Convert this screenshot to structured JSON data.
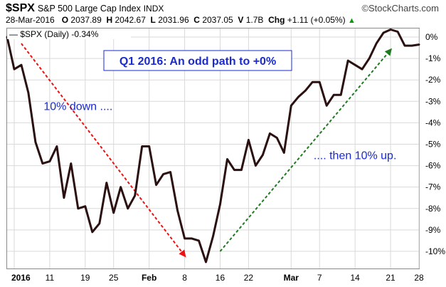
{
  "header": {
    "ticker": "$SPX",
    "index_name": "S&P 500 Large Cap Index",
    "exchange": "INDX",
    "brand": "©StockCharts.com",
    "date": "28-Mar-2016",
    "open_label": "O",
    "open": "2037.89",
    "high_label": "H",
    "high": "2042.67",
    "low_label": "L",
    "low": "2031.96",
    "close_label": "C",
    "close": "2037.05",
    "volume_label": "V",
    "volume": "1.7B",
    "change_label": "Chg",
    "change": "+1.11 (+0.05%)",
    "change_arrow": "▲"
  },
  "colors": {
    "line": "#2a1010",
    "grid": "#d9d9d9",
    "title_text": "#1a2ad0",
    "annotation_text": "#1a2ad0",
    "down_arrow": "#ee1111",
    "up_arrow": "#1f7a1f",
    "border": "#6f8fb8"
  },
  "chart_data": {
    "type": "line",
    "title": "Q1 2016: An odd path to +0%",
    "legend": "— $SPX (Daily) -0.34%",
    "ylabel": "",
    "xlabel": "",
    "ylim": [
      -10.8,
      0.4
    ],
    "yticks": [
      0,
      -1,
      -2,
      -3,
      -4,
      -5,
      -6,
      -7,
      -8,
      -9,
      -10
    ],
    "ytick_labels": [
      "0%",
      "-1%",
      "-2%",
      "-3%",
      "-4%",
      "-5%",
      "-6%",
      "-7%",
      "-8%",
      "-9%",
      "-10%"
    ],
    "grid": true,
    "xticks": [
      {
        "label": "2016",
        "date": "2016-01-01",
        "bold": true
      },
      {
        "label": "11",
        "date": "2016-01-11",
        "bold": false
      },
      {
        "label": "19",
        "date": "2016-01-19",
        "bold": false
      },
      {
        "label": "25",
        "date": "2016-01-25",
        "bold": false
      },
      {
        "label": "Feb",
        "date": "2016-02-01",
        "bold": true
      },
      {
        "label": "8",
        "date": "2016-02-08",
        "bold": false
      },
      {
        "label": "16",
        "date": "2016-02-16",
        "bold": false
      },
      {
        "label": "22",
        "date": "2016-02-22",
        "bold": false
      },
      {
        "label": "Mar",
        "date": "2016-03-01",
        "bold": true
      },
      {
        "label": "7",
        "date": "2016-03-07",
        "bold": false
      },
      {
        "label": "14",
        "date": "2016-03-14",
        "bold": false
      },
      {
        "label": "21",
        "date": "2016-03-21",
        "bold": false
      },
      {
        "label": "28",
        "date": "2016-03-28",
        "bold": false
      }
    ],
    "series": [
      {
        "name": "$SPX (Daily)",
        "points": [
          {
            "x": "2015-12-31",
            "y": 0.0
          },
          {
            "x": "2016-01-04",
            "y": -1.5
          },
          {
            "x": "2016-01-05",
            "y": -1.3
          },
          {
            "x": "2016-01-06",
            "y": -2.6
          },
          {
            "x": "2016-01-07",
            "y": -4.9
          },
          {
            "x": "2016-01-08",
            "y": -5.9
          },
          {
            "x": "2016-01-11",
            "y": -5.8
          },
          {
            "x": "2016-01-12",
            "y": -5.1
          },
          {
            "x": "2016-01-13",
            "y": -7.5
          },
          {
            "x": "2016-01-14",
            "y": -5.9
          },
          {
            "x": "2016-01-15",
            "y": -8.0
          },
          {
            "x": "2016-01-19",
            "y": -7.9
          },
          {
            "x": "2016-01-20",
            "y": -9.1
          },
          {
            "x": "2016-01-21",
            "y": -8.7
          },
          {
            "x": "2016-01-22",
            "y": -6.8
          },
          {
            "x": "2016-01-25",
            "y": -8.2
          },
          {
            "x": "2016-01-26",
            "y": -7.0
          },
          {
            "x": "2016-01-27",
            "y": -8.0
          },
          {
            "x": "2016-01-28",
            "y": -7.4
          },
          {
            "x": "2016-01-29",
            "y": -5.1
          },
          {
            "x": "2016-02-01",
            "y": -5.1
          },
          {
            "x": "2016-02-02",
            "y": -6.9
          },
          {
            "x": "2016-02-03",
            "y": -6.4
          },
          {
            "x": "2016-02-04",
            "y": -6.3
          },
          {
            "x": "2016-02-05",
            "y": -8.1
          },
          {
            "x": "2016-02-08",
            "y": -9.4
          },
          {
            "x": "2016-02-09",
            "y": -9.4
          },
          {
            "x": "2016-02-10",
            "y": -9.5
          },
          {
            "x": "2016-02-11",
            "y": -10.5
          },
          {
            "x": "2016-02-12",
            "y": -9.3
          },
          {
            "x": "2016-02-16",
            "y": -7.8
          },
          {
            "x": "2016-02-17",
            "y": -5.7
          },
          {
            "x": "2016-02-18",
            "y": -6.2
          },
          {
            "x": "2016-02-19",
            "y": -6.2
          },
          {
            "x": "2016-02-22",
            "y": -4.8
          },
          {
            "x": "2016-02-23",
            "y": -6.0
          },
          {
            "x": "2016-02-24",
            "y": -5.5
          },
          {
            "x": "2016-02-25",
            "y": -4.5
          },
          {
            "x": "2016-02-26",
            "y": -4.7
          },
          {
            "x": "2016-02-29",
            "y": -5.4
          },
          {
            "x": "2016-03-01",
            "y": -3.2
          },
          {
            "x": "2016-03-02",
            "y": -2.8
          },
          {
            "x": "2016-03-03",
            "y": -2.5
          },
          {
            "x": "2016-03-04",
            "y": -2.1
          },
          {
            "x": "2016-03-07",
            "y": -2.1
          },
          {
            "x": "2016-03-08",
            "y": -3.2
          },
          {
            "x": "2016-03-09",
            "y": -2.7
          },
          {
            "x": "2016-03-10",
            "y": -2.7
          },
          {
            "x": "2016-03-11",
            "y": -1.1
          },
          {
            "x": "2016-03-14",
            "y": -1.3
          },
          {
            "x": "2016-03-15",
            "y": -1.5
          },
          {
            "x": "2016-03-16",
            "y": -1.0
          },
          {
            "x": "2016-03-17",
            "y": -0.3
          },
          {
            "x": "2016-03-18",
            "y": 0.2
          },
          {
            "x": "2016-03-21",
            "y": 0.35
          },
          {
            "x": "2016-03-22",
            "y": 0.25
          },
          {
            "x": "2016-03-23",
            "y": -0.4
          },
          {
            "x": "2016-03-24",
            "y": -0.4
          },
          {
            "x": "2016-03-28",
            "y": -0.35
          }
        ]
      }
    ],
    "annotations": [
      {
        "text": "10% down ....",
        "x": "2016-01-15",
        "y": -3.4
      },
      {
        "text": ".... then 10% up.",
        "x": "2016-03-12",
        "y": -5.7
      }
    ],
    "arrows": [
      {
        "name": "down",
        "from": {
          "x": "2016-01-05",
          "y": -0.3
        },
        "to": {
          "x": "2016-02-08",
          "y": -10.2
        },
        "color": "#ee1111"
      },
      {
        "name": "up",
        "from": {
          "x": "2016-02-16",
          "y": -10.0
        },
        "to": {
          "x": "2016-03-21",
          "y": -0.6
        },
        "color": "#1f7a1f"
      }
    ]
  }
}
